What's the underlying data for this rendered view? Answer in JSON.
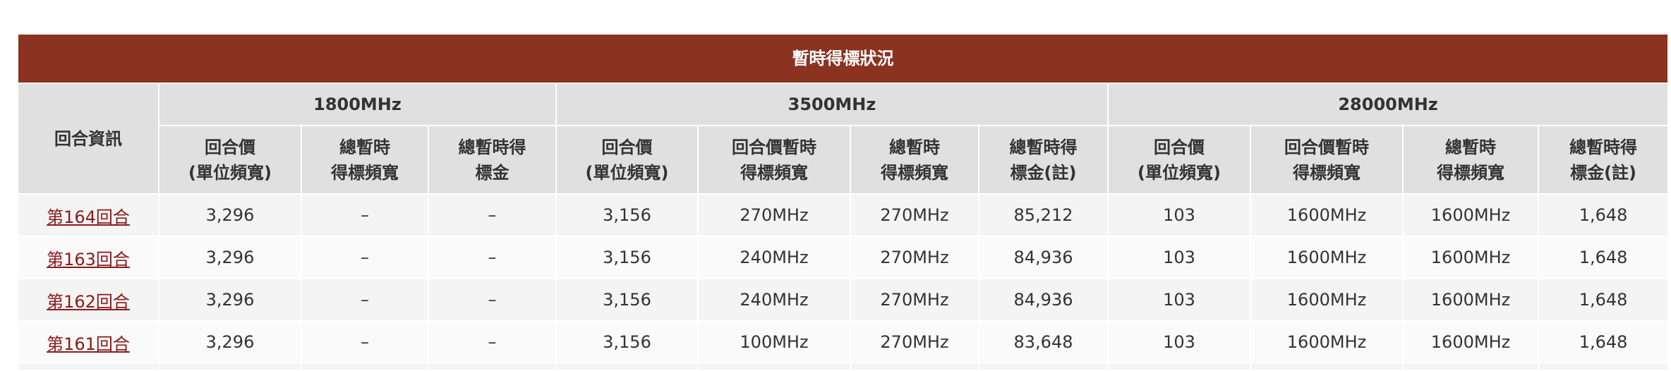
{
  "table": {
    "title": "暫時得標狀況",
    "round_info_header": "回合資訊",
    "groups": [
      "1800MHz",
      "3500MHz",
      "28000MHz"
    ],
    "subheaders": {
      "g1800": [
        [
          "回合價",
          "(單位頻寬)"
        ],
        [
          "總暫時",
          "得標頻寬"
        ],
        [
          "總暫時得",
          "標金"
        ]
      ],
      "g3500": [
        [
          "回合價",
          "(單位頻寬)"
        ],
        [
          "回合價暫時",
          "得標頻寬"
        ],
        [
          "總暫時",
          "得標頻寬"
        ],
        [
          "總暫時得",
          "標金(註)"
        ]
      ],
      "g28000": [
        [
          "回合價",
          "(單位頻寬)"
        ],
        [
          "回合價暫時",
          "得標頻寬"
        ],
        [
          "總暫時",
          "得標頻寬"
        ],
        [
          "總暫時得",
          "標金(註)"
        ]
      ]
    },
    "rows": [
      {
        "round": "第164回合",
        "cells": [
          "3,296",
          "–",
          "–",
          "3,156",
          "270MHz",
          "270MHz",
          "85,212",
          "103",
          "1600MHz",
          "1600MHz",
          "1,648"
        ]
      },
      {
        "round": "第163回合",
        "cells": [
          "3,296",
          "–",
          "–",
          "3,156",
          "240MHz",
          "270MHz",
          "84,936",
          "103",
          "1600MHz",
          "1600MHz",
          "1,648"
        ]
      },
      {
        "round": "第162回合",
        "cells": [
          "3,296",
          "–",
          "–",
          "3,156",
          "240MHz",
          "270MHz",
          "84,936",
          "103",
          "1600MHz",
          "1600MHz",
          "1,648"
        ]
      },
      {
        "round": "第161回合",
        "cells": [
          "3,296",
          "–",
          "–",
          "3,156",
          "100MHz",
          "270MHz",
          "83,648",
          "103",
          "1600MHz",
          "1600MHz",
          "1,648"
        ]
      }
    ]
  },
  "colors": {
    "title_bar": "#8b3220",
    "header_bg": "#e0e0e0",
    "link": "#8b1a1a"
  }
}
